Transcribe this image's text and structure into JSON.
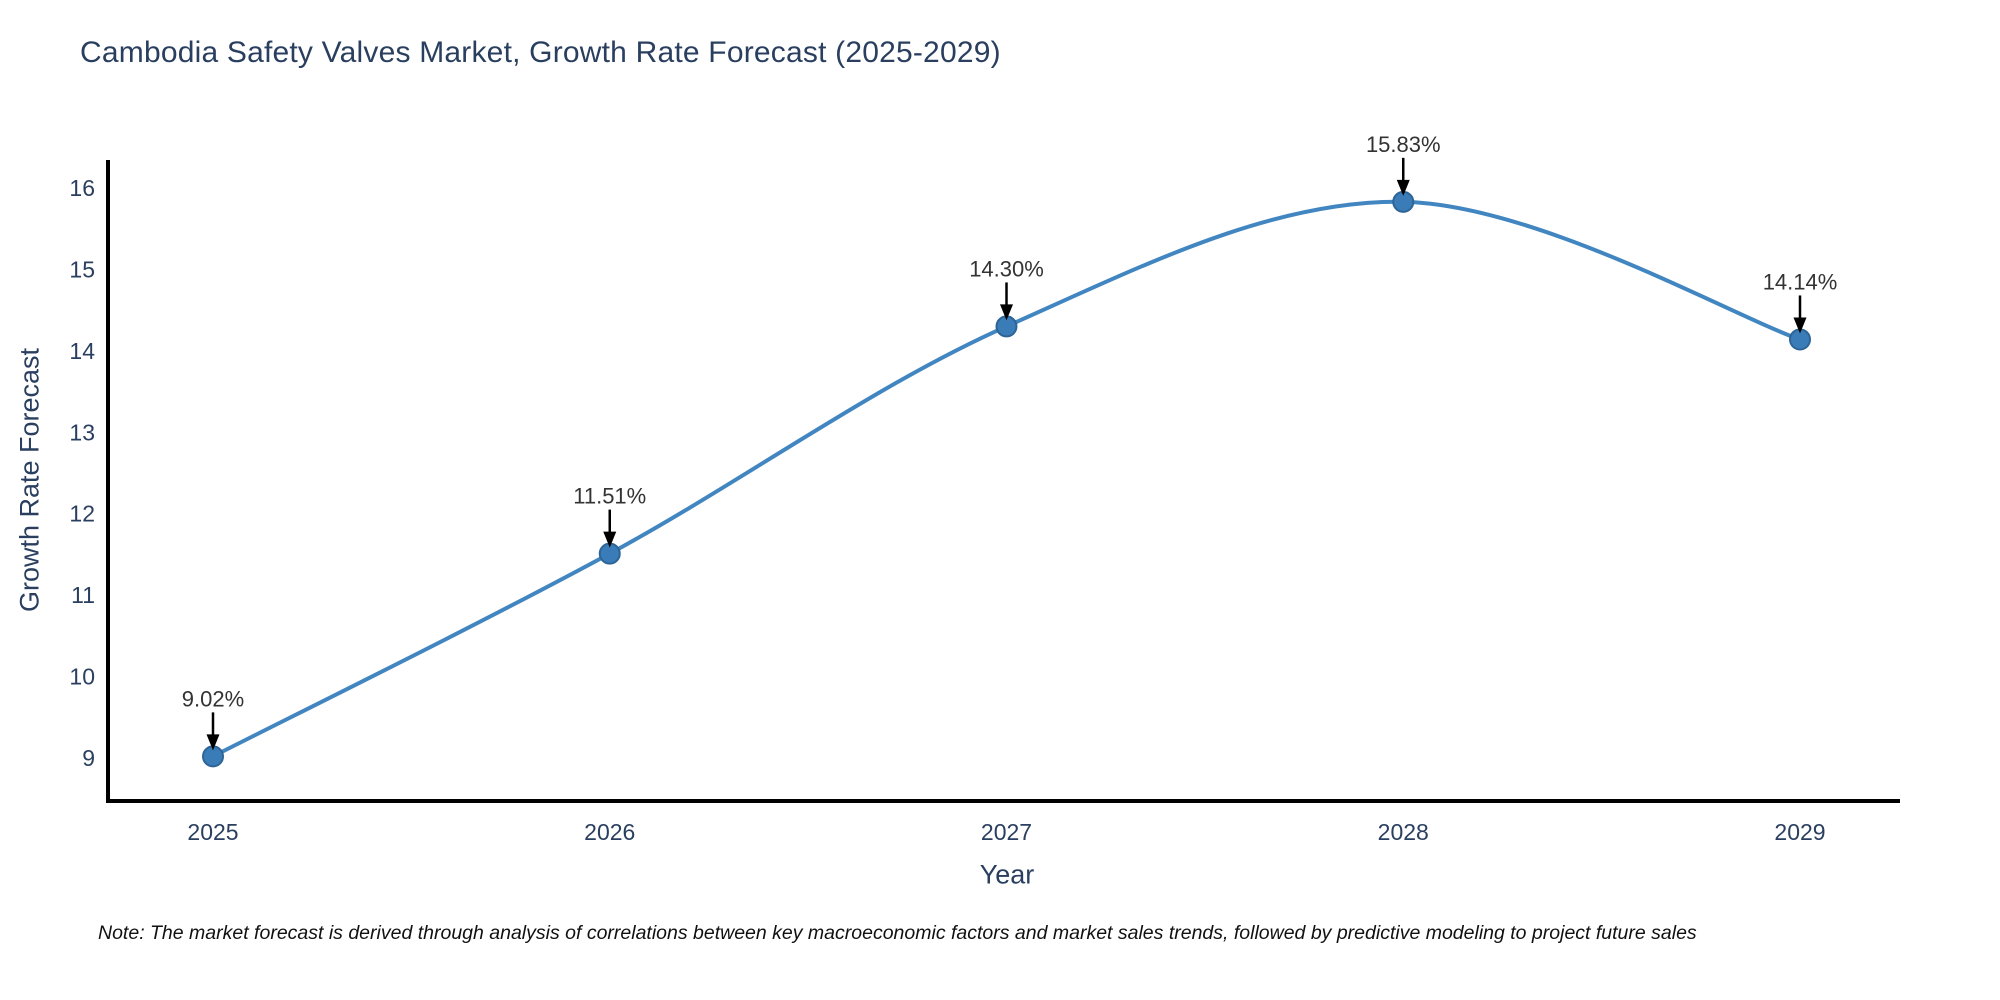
{
  "title": "Cambodia Safety Valves Market, Growth Rate Forecast (2025-2029)",
  "note": "Note: The market forecast is derived through analysis of correlations between key macroeconomic factors and market sales trends, followed by predictive modeling to project future sales",
  "chart_data": {
    "type": "line",
    "title": "Cambodia Safety Valves Market, Growth Rate Forecast (2025-2029)",
    "xlabel": "Year",
    "ylabel": "Growth Rate Forecast",
    "categories": [
      "2025",
      "2026",
      "2027",
      "2028",
      "2029"
    ],
    "values": [
      9.02,
      11.51,
      14.3,
      15.83,
      14.14
    ],
    "point_labels": [
      "9.02%",
      "11.51%",
      "14.30%",
      "15.83%",
      "14.14%"
    ],
    "yticks": [
      9,
      10,
      11,
      12,
      13,
      14,
      15,
      16
    ],
    "ylim": [
      8.45,
      16.35
    ],
    "grid": false,
    "legend": "none",
    "line_shape": "spline",
    "colors": {
      "line": "#4186c0",
      "marker_fill": "#3a7cb8",
      "marker_edge": "#2e6496",
      "axis_line": "#000000",
      "tick_label": "#2a3f5f",
      "annotation_text": "#333333",
      "annotation_arrow": "#000000",
      "title_text": "#2a3f5f"
    }
  }
}
